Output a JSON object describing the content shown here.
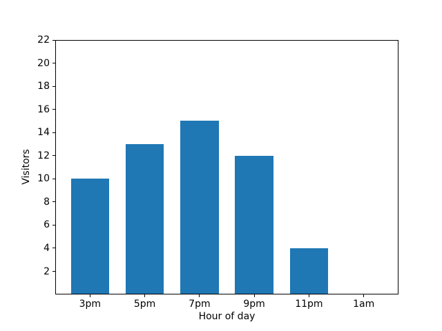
{
  "figure": {
    "background": "#ffffff"
  },
  "chart_data": {
    "type": "bar",
    "title": "",
    "xlabel": "Hour of day",
    "ylabel": "Visitors",
    "categories": [
      "3pm",
      "5pm",
      "7pm",
      "9pm",
      "11pm",
      "1am"
    ],
    "values": [
      10,
      13,
      15,
      12,
      4,
      0
    ],
    "yticks": [
      2,
      4,
      6,
      8,
      10,
      12,
      14,
      16,
      18,
      20,
      22
    ],
    "ylim": [
      0,
      22
    ],
    "xlim": [
      -0.635,
      5.635
    ],
    "bar_width_units": 0.7,
    "bar_color": "#1f77b4",
    "axis_color": "#000000",
    "grid": false,
    "legend": null
  }
}
